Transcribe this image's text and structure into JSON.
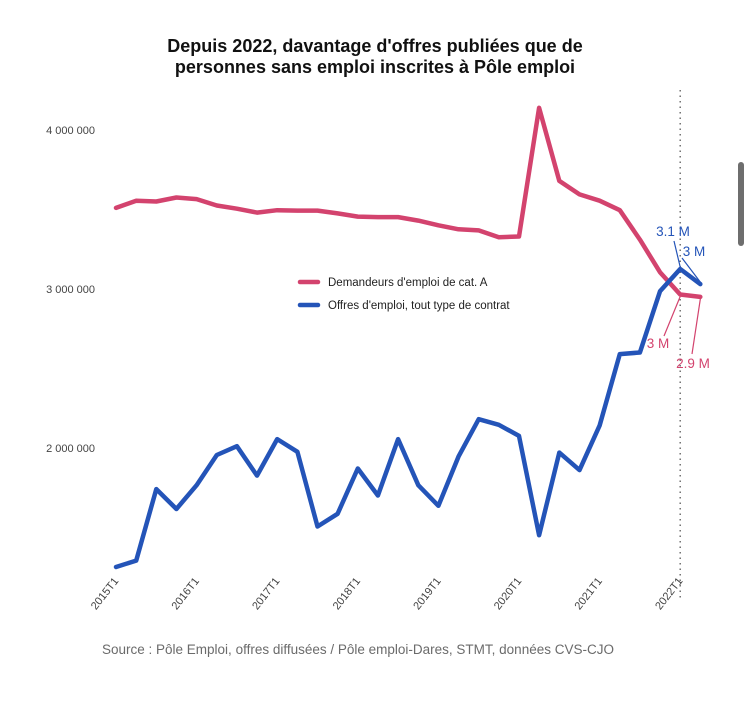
{
  "chart_data": {
    "type": "line",
    "title": "Depuis 2022, davantage d'offres publiées que de\npersonnes sans emploi inscrites à Pôle emploi",
    "x": [
      "2015T1",
      "2015T2",
      "2015T3",
      "2015T4",
      "2016T1",
      "2016T2",
      "2016T3",
      "2016T4",
      "2017T1",
      "2017T2",
      "2017T3",
      "2017T4",
      "2018T1",
      "2018T2",
      "2018T3",
      "2018T4",
      "2019T1",
      "2019T2",
      "2019T3",
      "2019T4",
      "2020T1",
      "2020T2",
      "2020T3",
      "2020T4",
      "2021T1",
      "2021T2",
      "2021T3",
      "2021T4",
      "2022T1",
      "2022T2"
    ],
    "x_tick_labels": [
      "2015T1",
      "2016T1",
      "2017T1",
      "2018T1",
      "2019T1",
      "2020T1",
      "2021T1",
      "2022T1"
    ],
    "y_ticks": [
      2000000,
      3000000,
      4000000
    ],
    "y_tick_labels": [
      "2 000 000",
      "3 000 000",
      "4 000 000"
    ],
    "ylim": [
      1150000,
      4350000
    ],
    "grid": false,
    "legend_position": "center-right",
    "series": [
      {
        "name": "Demandeurs d'emploi de cat. A",
        "color": "#d3436e",
        "values": [
          3510000,
          3555000,
          3550000,
          3575000,
          3565000,
          3525000,
          3505000,
          3480000,
          3495000,
          3493000,
          3493000,
          3475000,
          3455000,
          3452000,
          3452000,
          3430000,
          3400000,
          3375000,
          3368000,
          3325000,
          3330000,
          4140000,
          3680000,
          3595000,
          3555000,
          3495000,
          3310000,
          3105000,
          2965000,
          2950000
        ],
        "end_labels": [
          "3 M",
          "2.9 M"
        ]
      },
      {
        "name": "Offres d'emploi, tout type de contrat",
        "color": "#2454b8",
        "values": [
          1250000,
          1290000,
          1740000,
          1615000,
          1765000,
          1955000,
          2010000,
          1825000,
          2055000,
          1975000,
          1505000,
          1585000,
          1870000,
          1700000,
          2055000,
          1765000,
          1635000,
          1945000,
          2180000,
          2145000,
          2075000,
          1450000,
          1970000,
          1860000,
          2140000,
          2590000,
          2600000,
          2985000,
          3125000,
          3030000
        ],
        "end_labels": [
          "3.1 M",
          "3 M"
        ]
      }
    ],
    "marker_line_at": "2022T1"
  },
  "source": "Source : Pôle Emploi, offres diffusées / Pôle emploi-Dares, STMT, données CVS-CJO"
}
